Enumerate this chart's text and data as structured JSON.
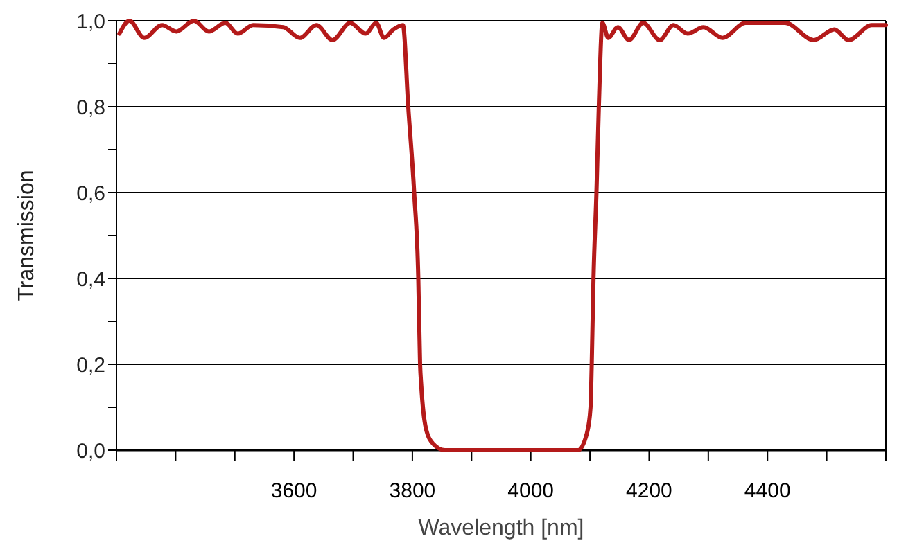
{
  "chart_data": {
    "type": "line",
    "xlabel": "Wavelength [nm]",
    "ylabel": "Transmission",
    "xlim": [
      3300,
      4600
    ],
    "xticks": [
      {
        "value": 3300,
        "label": null
      },
      {
        "value": 3400,
        "label": null
      },
      {
        "value": 3500,
        "label": null
      },
      3600,
      {
        "value": 3700,
        "label": null
      },
      3800,
      {
        "value": 3900,
        "label": null
      },
      4000,
      {
        "value": 4100,
        "label": null
      },
      4200,
      {
        "value": 4300,
        "label": null
      },
      4400,
      {
        "value": 4500,
        "label": null
      },
      {
        "value": 4600,
        "label": null
      }
    ],
    "ylim": [
      0,
      1
    ],
    "yticks": [
      {
        "value": 0,
        "label": "0,0"
      },
      {
        "value": 0.1,
        "label": null
      },
      {
        "value": 0.2,
        "label": "0,2"
      },
      {
        "value": 0.3,
        "label": null
      },
      {
        "value": 0.4,
        "label": "0,4"
      },
      {
        "value": 0.5,
        "label": null
      },
      {
        "value": 0.6,
        "label": "0,6"
      },
      {
        "value": 0.7,
        "label": null
      },
      {
        "value": 0.8,
        "label": "0,8"
      },
      {
        "value": 0.9,
        "label": null
      },
      {
        "value": 1,
        "label": "1,0"
      }
    ],
    "grid": "y",
    "marker": "none",
    "line_style": "solid",
    "series": [
      {
        "color": "#b41a1a",
        "x": [
          3305,
          3322,
          3347,
          3377,
          3401,
          3431,
          3456,
          3484,
          3505,
          3531,
          3582,
          3610,
          3638,
          3665,
          3695,
          3721,
          3739,
          3752,
          3768,
          3784,
          3793,
          3803,
          3810,
          3813,
          3815,
          3823,
          3835,
          3855,
          4080,
          4095,
          4101,
          4103,
          4106,
          4111,
          4115,
          4121,
          4131,
          4147,
          4166,
          4190,
          4218,
          4241,
          4265,
          4292,
          4324,
          4363,
          4430,
          4478,
          4513,
          4537,
          4576,
          4600
        ],
        "values": [
          0.97,
          1.0,
          0.96,
          0.99,
          0.975,
          1.0,
          0.975,
          0.995,
          0.97,
          0.99,
          0.985,
          0.96,
          0.99,
          0.955,
          0.995,
          0.97,
          0.995,
          0.96,
          0.98,
          0.99,
          0.8,
          0.6,
          0.4,
          0.2,
          0.15,
          0.05,
          0.015,
          0,
          0,
          0.04,
          0.1,
          0.2,
          0.4,
          0.6,
          0.8,
          0.995,
          0.96,
          0.985,
          0.955,
          0.995,
          0.955,
          0.99,
          0.97,
          0.985,
          0.96,
          0.995,
          0.995,
          0.955,
          0.98,
          0.955,
          0.99,
          0.99
        ]
      }
    ]
  }
}
